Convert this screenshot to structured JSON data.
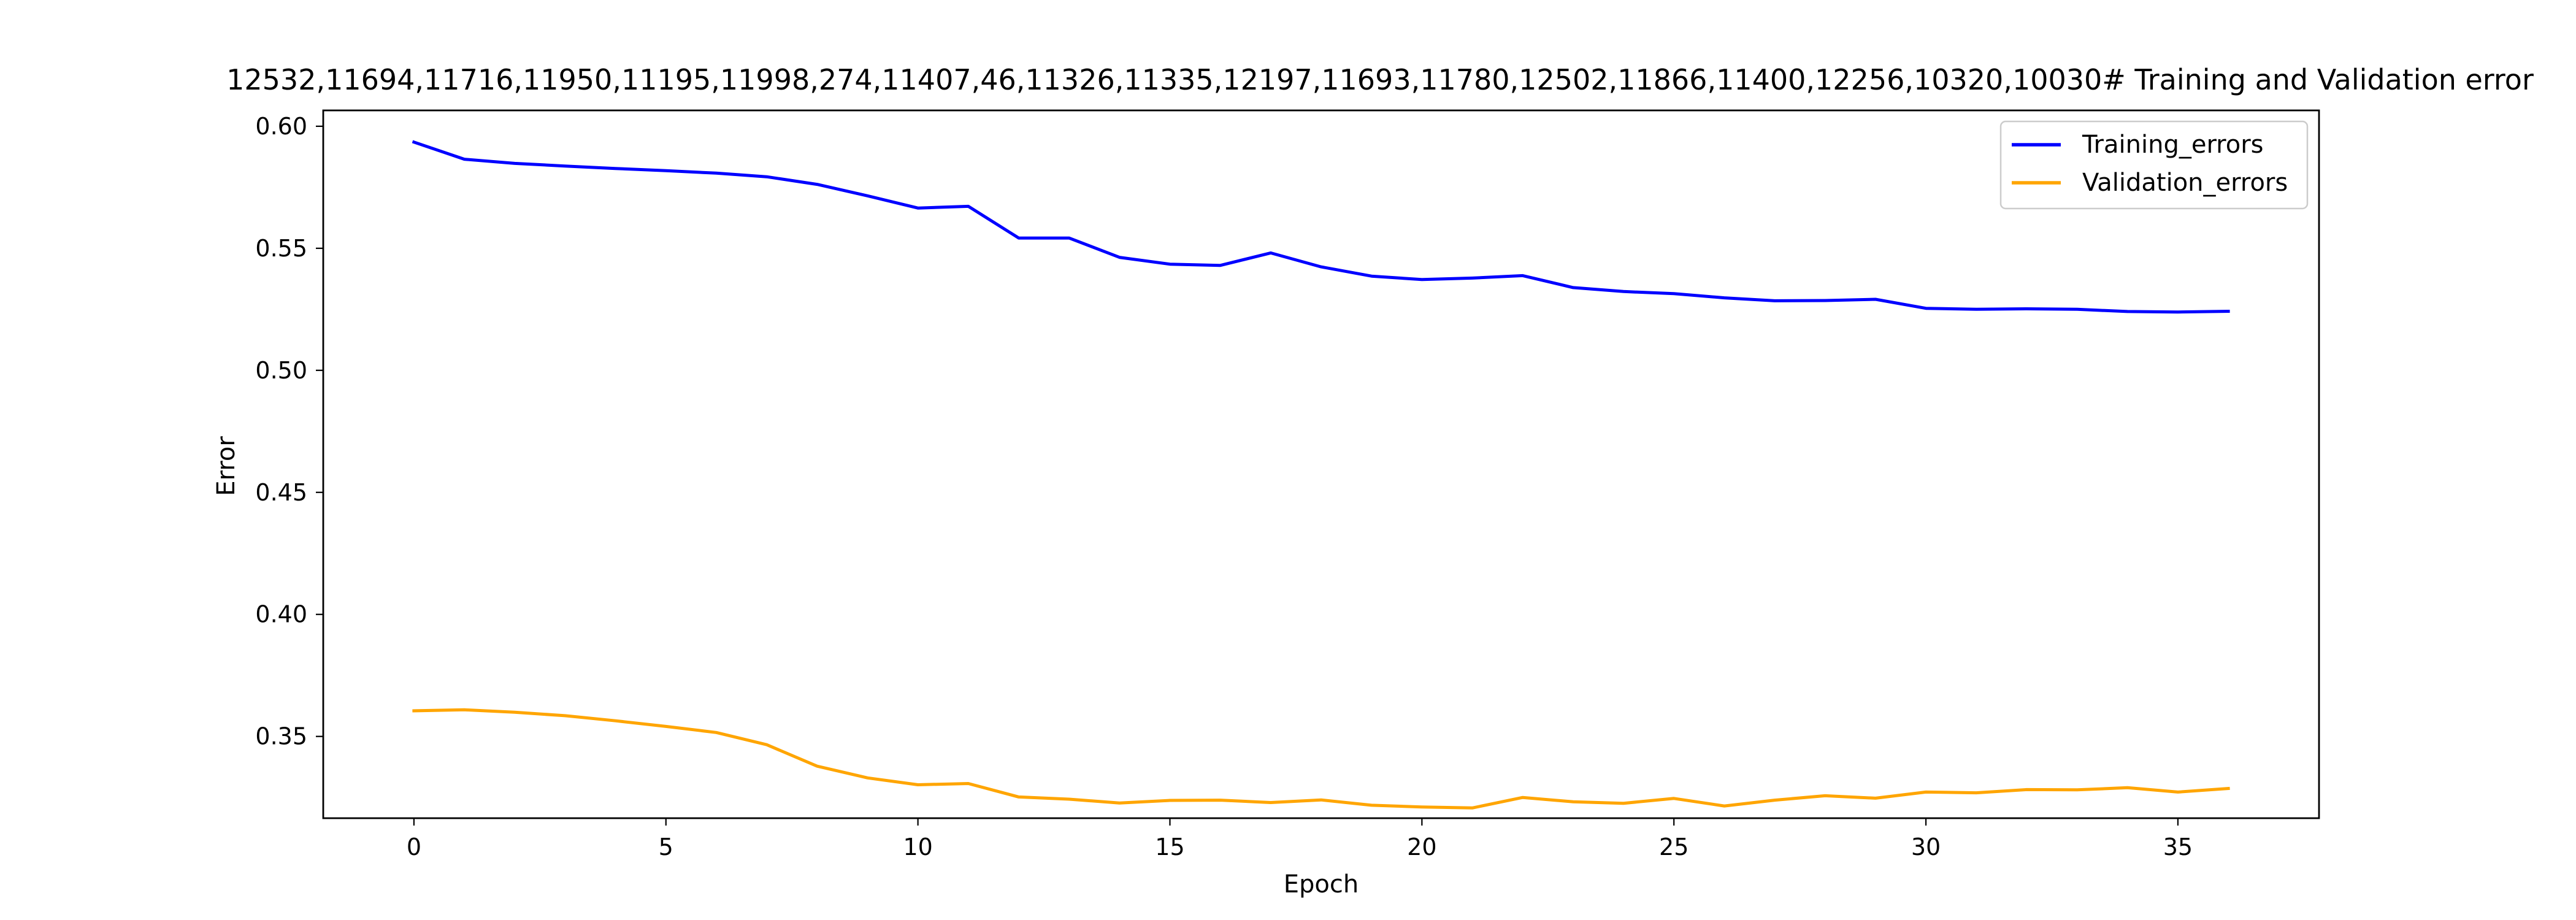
{
  "chart_data": {
    "type": "line",
    "title": "12532,11694,11716,11950,11195,11998,274,11407,46,11326,11335,12197,11693,11780,12502,11866,11400,12256,10320,10030# Training and Validation error",
    "xlabel": "Epoch",
    "ylabel": "Error",
    "xlim": [
      -1.8,
      37.8
    ],
    "ylim": [
      0.3165,
      0.6065
    ],
    "x_ticks": [
      0,
      5,
      10,
      15,
      20,
      25,
      30,
      35
    ],
    "y_ticks": [
      0.35,
      0.4,
      0.45,
      0.5,
      0.55,
      0.6
    ],
    "y_tick_labels": [
      "0.35",
      "0.40",
      "0.45",
      "0.50",
      "0.55",
      "0.60"
    ],
    "grid": false,
    "legend": {
      "position": "upper-right"
    },
    "x": [
      0,
      1,
      2,
      3,
      4,
      5,
      6,
      7,
      8,
      9,
      10,
      11,
      12,
      13,
      14,
      15,
      16,
      17,
      18,
      19,
      20,
      21,
      22,
      23,
      24,
      25,
      26,
      27,
      28,
      29,
      30,
      31,
      32,
      33,
      34,
      35,
      36
    ],
    "series": [
      {
        "name": "Training_errors",
        "color": "#0000ff",
        "values": [
          0.5935,
          0.5865,
          0.5848,
          0.5837,
          0.5827,
          0.5818,
          0.5808,
          0.5793,
          0.5762,
          0.5715,
          0.5665,
          0.5672,
          0.5542,
          0.5542,
          0.5463,
          0.5435,
          0.543,
          0.5481,
          0.5424,
          0.5386,
          0.5372,
          0.5378,
          0.5388,
          0.5339,
          0.5323,
          0.5314,
          0.5297,
          0.5285,
          0.5286,
          0.5291,
          0.5254,
          0.525,
          0.5252,
          0.525,
          0.5241,
          0.5239,
          0.5242
        ]
      },
      {
        "name": "Validation_errors",
        "color": "#ffa500",
        "values": [
          0.3605,
          0.3609,
          0.3599,
          0.3585,
          0.3564,
          0.3541,
          0.3516,
          0.3466,
          0.3378,
          0.333,
          0.3302,
          0.3307,
          0.3252,
          0.3243,
          0.3227,
          0.3238,
          0.3239,
          0.3229,
          0.324,
          0.3218,
          0.3211,
          0.3207,
          0.325,
          0.3232,
          0.3226,
          0.3246,
          0.3215,
          0.3239,
          0.3257,
          0.3247,
          0.3272,
          0.3269,
          0.3282,
          0.3281,
          0.329,
          0.3272,
          0.3287
        ]
      }
    ]
  }
}
